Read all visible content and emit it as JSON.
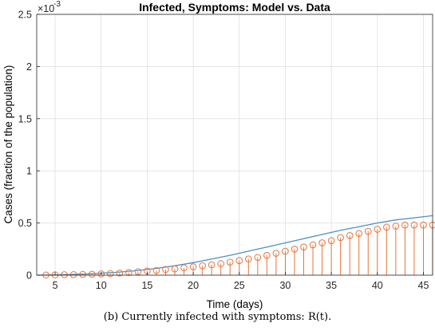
{
  "chart_data": {
    "type": "stem+line",
    "title": "Infected, Symptoms: Model vs. Data",
    "xlabel": "Time (days)",
    "ylabel": "Cases (fraction of the population)",
    "y_exponent_label": "×10",
    "y_exponent_power": "-3",
    "xlim": [
      3,
      46
    ],
    "ylim": [
      0,
      0.0025
    ],
    "x_ticks": [
      5,
      10,
      15,
      20,
      25,
      30,
      35,
      40,
      45
    ],
    "x_tick_labels": [
      "5",
      "10",
      "15",
      "20",
      "25",
      "30",
      "35",
      "40",
      "45"
    ],
    "y_ticks": [
      0,
      0.0005,
      0.001,
      0.0015,
      0.002,
      0.0025
    ],
    "y_tick_labels": [
      "0",
      "0.5",
      "1",
      "1.5",
      "2",
      "2.5"
    ],
    "grid": true,
    "colors": {
      "model": "#4a90c8",
      "data": "#e8733a"
    },
    "model_x": [
      3,
      5,
      8,
      10,
      12,
      14,
      16,
      18,
      20,
      22,
      24,
      26,
      28,
      30,
      32,
      34,
      36,
      38,
      40,
      42,
      44,
      46
    ],
    "model_y": [
      0.0,
      3e-06,
      1e-05,
      1.8e-05,
      3e-05,
      4.5e-05,
      6.5e-05,
      9e-05,
      0.00012,
      0.000155,
      0.00019,
      0.00023,
      0.00027,
      0.00031,
      0.00035,
      0.00039,
      0.00043,
      0.000465,
      0.0005,
      0.00053,
      0.00055,
      0.00057
    ],
    "data_x": [
      4,
      5,
      6,
      7,
      8,
      9,
      10,
      11,
      12,
      13,
      14,
      15,
      16,
      17,
      18,
      19,
      20,
      21,
      22,
      23,
      24,
      25,
      26,
      27,
      28,
      29,
      30,
      31,
      32,
      33,
      34,
      35,
      36,
      37,
      38,
      39,
      40,
      41,
      42,
      43,
      44,
      45,
      46
    ],
    "data_y": [
      2e-06,
      3e-06,
      4e-06,
      5e-06,
      7e-06,
      9e-06,
      1.2e-05,
      1.5e-05,
      2e-05,
      2.5e-05,
      3.3e-05,
      4e-05,
      4.5e-05,
      5.5e-05,
      6e-05,
      7e-05,
      8e-05,
      9e-05,
      0.0001,
      0.00011,
      0.000125,
      0.00014,
      0.000155,
      0.00017,
      0.00019,
      0.00021,
      0.00023,
      0.00025,
      0.00027,
      0.00029,
      0.00031,
      0.00033,
      0.00036,
      0.00038,
      0.0004,
      0.00042,
      0.00044,
      0.00046,
      0.00047,
      0.00048,
      0.00048,
      0.00048,
      0.00048
    ]
  },
  "caption": "(b) Currently infected with symptoms: R(t)."
}
